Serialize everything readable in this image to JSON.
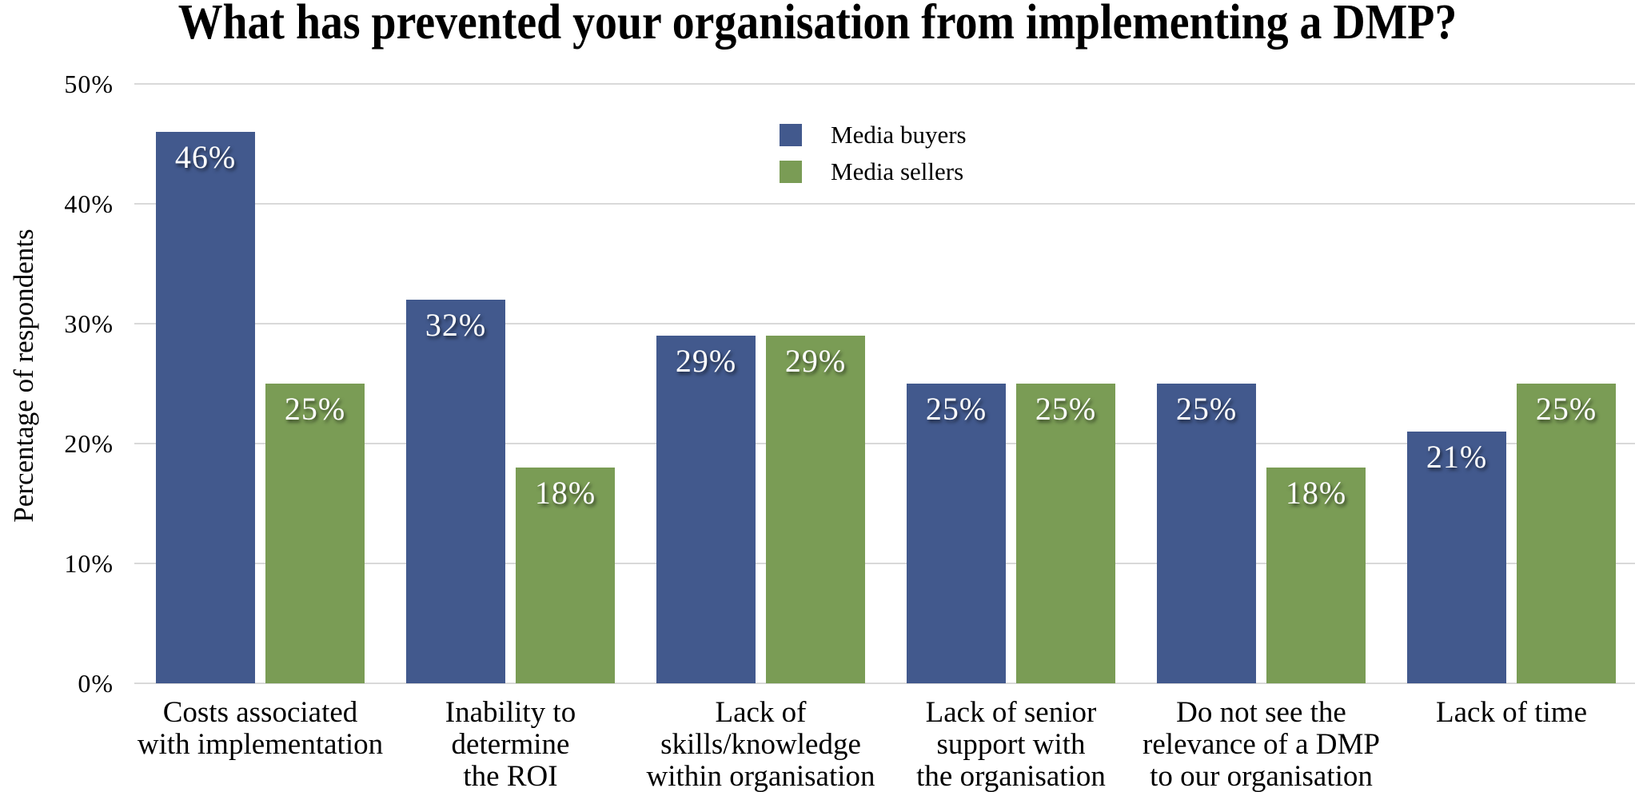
{
  "title": "What has prevented your organisation from implementing a DMP?",
  "y_axis": {
    "title": "Percentage of respondents",
    "tick_labels": [
      "50%",
      "40%",
      "30%",
      "20%",
      "10%",
      "0%"
    ]
  },
  "legend": {
    "items": [
      {
        "label": "Media buyers",
        "color": "#42598D"
      },
      {
        "label": "Media sellers",
        "color": "#7A9C55"
      }
    ]
  },
  "chart_data": {
    "type": "bar",
    "title": "What has prevented your organisation from implementing a DMP?",
    "xlabel": "",
    "ylabel": "Percentage of respondents",
    "ylim": [
      0,
      50
    ],
    "y_ticks": [
      50,
      40,
      30,
      20,
      10,
      0
    ],
    "grid": "horizontal",
    "legend_position": "top center, inside plot area",
    "categories": [
      [
        "Costs associated",
        "with implementation"
      ],
      [
        "Inability to",
        "determine",
        "the ROI"
      ],
      [
        "Lack of",
        "skills/knowledge",
        "within organisation"
      ],
      [
        "Lack of senior",
        "support with",
        "the organisation"
      ],
      [
        "Do not see the",
        "relevance of a DMP",
        "to our organisation"
      ],
      [
        "Lack of time"
      ]
    ],
    "series": [
      {
        "name": "Media buyers",
        "color": "#42598D",
        "values": [
          46,
          32,
          29,
          25,
          25,
          21
        ],
        "value_labels": [
          "46%",
          "32%",
          "29%",
          "25%",
          "25%",
          "21%"
        ]
      },
      {
        "name": "Media sellers",
        "color": "#7A9C55",
        "values": [
          25,
          18,
          29,
          25,
          18,
          25
        ],
        "value_labels": [
          "25%",
          "18%",
          "29%",
          "25%",
          "18%",
          "25%"
        ]
      }
    ]
  },
  "colors": {
    "background": "#FFFFFF",
    "gridline": "#D9D9D9",
    "text": "#000000",
    "bar_label_text": "#FFFFFF"
  }
}
